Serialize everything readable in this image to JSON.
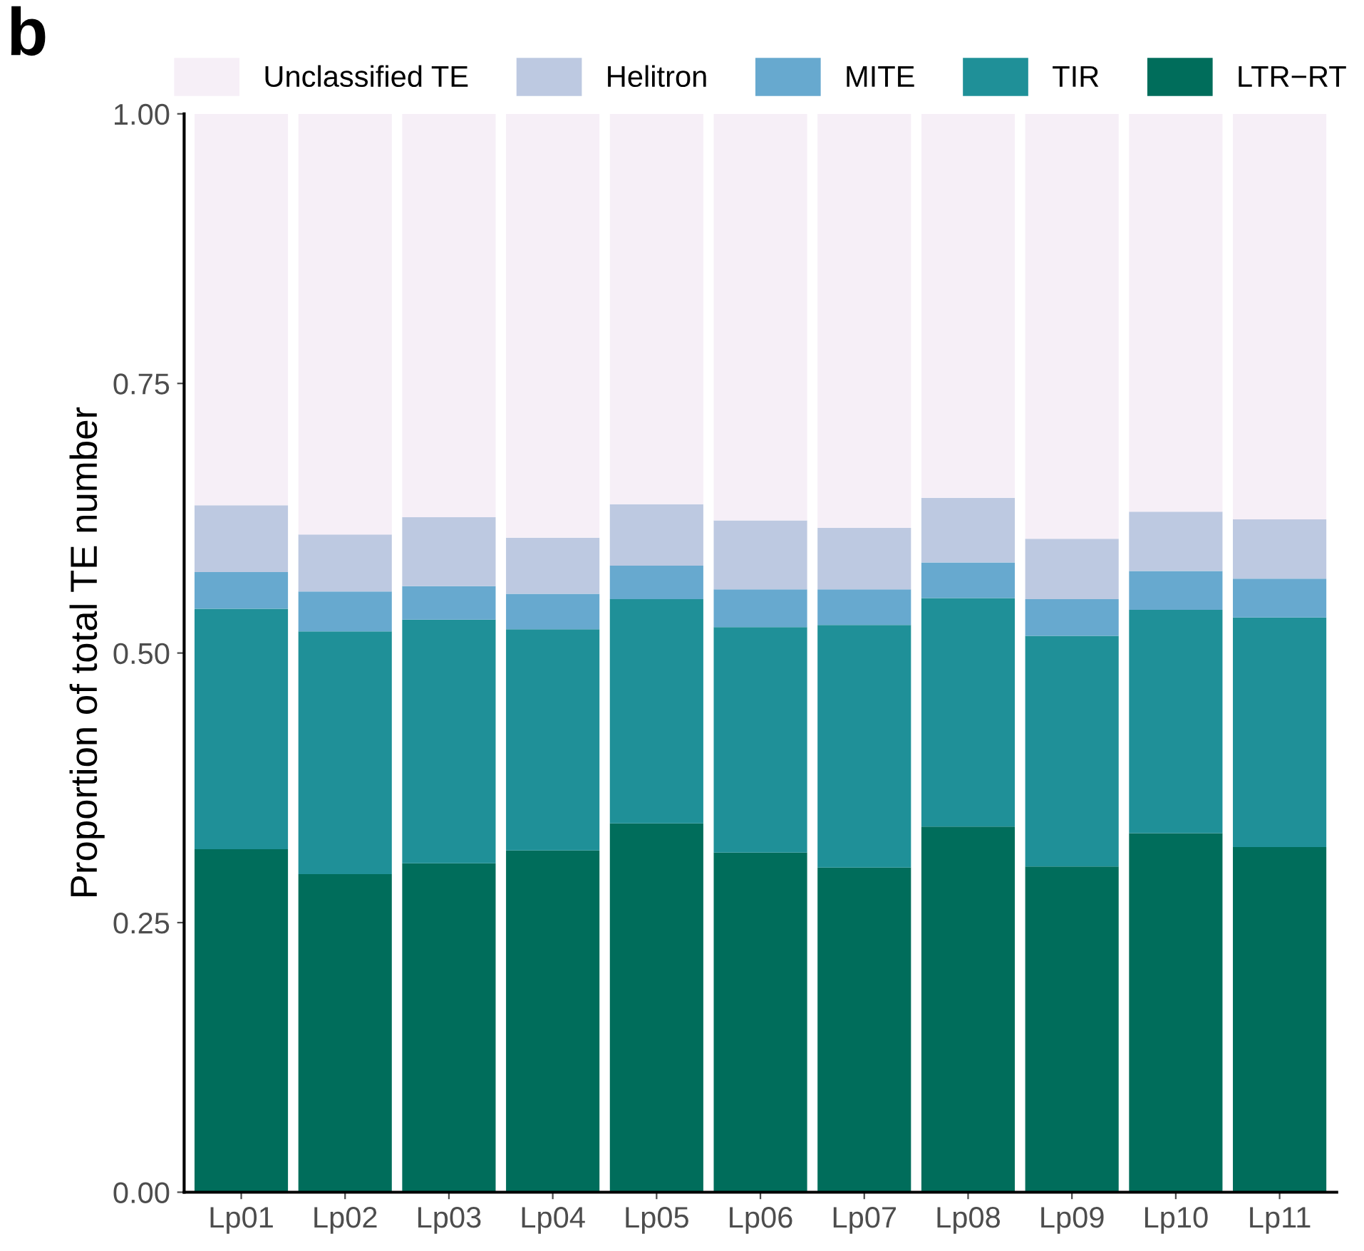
{
  "chart_data": {
    "type": "bar",
    "stacked": true,
    "ylabel": "Proportion of total TE number",
    "annotations": [
      "b"
    ],
    "categories": [
      "Lp01",
      "Lp02",
      "Lp03",
      "Lp04",
      "Lp05",
      "Lp06",
      "Lp07",
      "Lp08",
      "Lp09",
      "Lp10",
      "Lp11"
    ],
    "series": [
      {
        "name": "LTR−RT",
        "color": "#006d5b",
        "values": [
          0.318,
          0.295,
          0.305,
          0.317,
          0.342,
          0.315,
          0.301,
          0.339,
          0.302,
          0.333,
          0.32
        ]
      },
      {
        "name": "TIR",
        "color": "#1f9098",
        "values": [
          0.223,
          0.225,
          0.226,
          0.205,
          0.208,
          0.209,
          0.225,
          0.212,
          0.214,
          0.207,
          0.213
        ]
      },
      {
        "name": "MITE",
        "color": "#67a9cf",
        "values": [
          0.034,
          0.037,
          0.031,
          0.033,
          0.031,
          0.035,
          0.033,
          0.033,
          0.034,
          0.036,
          0.036
        ]
      },
      {
        "name": "Helitron",
        "color": "#bdc9e1",
        "values": [
          0.062,
          0.053,
          0.064,
          0.052,
          0.057,
          0.064,
          0.057,
          0.06,
          0.056,
          0.055,
          0.055
        ]
      },
      {
        "name": "Unclassified TE",
        "color": "#f6eff7",
        "values": [
          0.363,
          0.39,
          0.374,
          0.393,
          0.362,
          0.377,
          0.384,
          0.356,
          0.394,
          0.369,
          0.376
        ]
      }
    ],
    "ylim": [
      0,
      1
    ],
    "yticks": [
      {
        "value": 0,
        "label": "0.00"
      },
      {
        "value": 0.25,
        "label": "0.25"
      },
      {
        "value": 0.5,
        "label": "0.50"
      },
      {
        "value": 0.75,
        "label": "0.75"
      },
      {
        "value": 1,
        "label": "1.00"
      }
    ],
    "grid": false,
    "legend": "top"
  }
}
